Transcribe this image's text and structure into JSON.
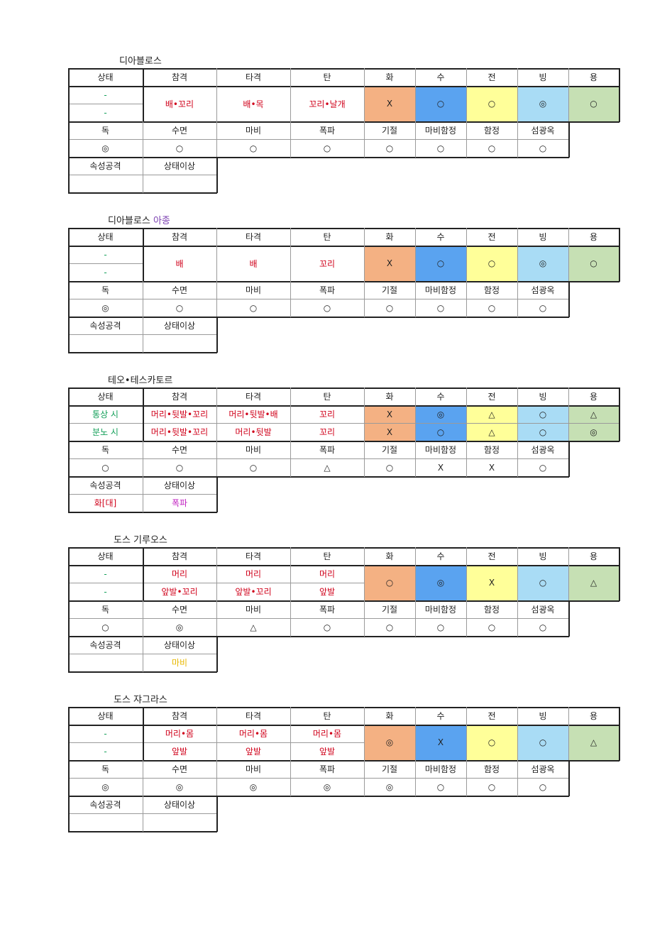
{
  "headers": {
    "weakness": [
      "상태",
      "참격",
      "타격",
      "탄",
      "화",
      "수",
      "전",
      "빙",
      "용"
    ],
    "status": [
      "독",
      "수면",
      "마비",
      "폭파",
      "기절",
      "마비함정",
      "함정",
      "섬광옥"
    ],
    "attack": [
      "속성공격",
      "상태이상"
    ]
  },
  "colors": {
    "fire": "#f4b183",
    "water": "#5aa3f0",
    "thunder": "#ffff99",
    "ice": "#a9dcf5",
    "dragon": "#c6e0b4",
    "state_text": "#14a05a",
    "part_text": "#d0021b"
  },
  "monsters": [
    {
      "name": "디아블로스",
      "name_sub": "",
      "states": [
        "-",
        "-"
      ],
      "merge_parts": true,
      "parts": {
        "cut": [
          "배•꼬리"
        ],
        "blunt": [
          "배•목"
        ],
        "shot": [
          "꼬리•날개"
        ]
      },
      "merge_elements": true,
      "elements": [
        [
          "X",
          "○",
          "○",
          "◎",
          "○"
        ]
      ],
      "status": [
        "◎",
        "○",
        "○",
        "○",
        "○",
        "○",
        "○",
        "○"
      ],
      "attack": {
        "element": "",
        "element_color": "red",
        "status": "",
        "status_color": "red"
      }
    },
    {
      "name": "디아블로스",
      "name_sub": "아종",
      "states": [
        "-",
        "-"
      ],
      "merge_parts": true,
      "parts": {
        "cut": [
          "배"
        ],
        "blunt": [
          "배"
        ],
        "shot": [
          "꼬리"
        ]
      },
      "merge_elements": true,
      "elements": [
        [
          "X",
          "○",
          "○",
          "◎",
          "○"
        ]
      ],
      "status": [
        "◎",
        "○",
        "○",
        "○",
        "○",
        "○",
        "○",
        "○"
      ],
      "attack": {
        "element": "",
        "element_color": "red",
        "status": "",
        "status_color": "red"
      }
    },
    {
      "name": "테오•테스카토르",
      "name_sub": "",
      "states": [
        "통상 시",
        "분노 시"
      ],
      "merge_parts": false,
      "parts": {
        "cut": [
          "머리•뒷발•꼬리",
          "머리•뒷발•꼬리"
        ],
        "blunt": [
          "머리•뒷발•배",
          "머리•뒷발"
        ],
        "shot": [
          "꼬리",
          "꼬리"
        ]
      },
      "merge_elements": false,
      "elements": [
        [
          "X",
          "◎",
          "△",
          "○",
          "△"
        ],
        [
          "X",
          "○",
          "△",
          "○",
          "◎"
        ]
      ],
      "status": [
        "○",
        "○",
        "○",
        "△",
        "○",
        "X",
        "X",
        "○"
      ],
      "attack": {
        "element": "화[대]",
        "element_color": "red",
        "status": "폭파",
        "status_color": "magenta"
      }
    },
    {
      "name": "도스 기루오스",
      "name_sub": "",
      "states": [
        "-",
        "-"
      ],
      "merge_parts": false,
      "parts": {
        "cut": [
          "머리",
          "앞발•꼬리"
        ],
        "blunt": [
          "머리",
          "앞발•꼬리"
        ],
        "shot": [
          "머리",
          "앞발"
        ]
      },
      "merge_elements": true,
      "elements": [
        [
          "○",
          "◎",
          "X",
          "○",
          "△"
        ]
      ],
      "status": [
        "○",
        "◎",
        "△",
        "○",
        "○",
        "○",
        "○",
        "○"
      ],
      "attack": {
        "element": "",
        "element_color": "red",
        "status": "마비",
        "status_color": "yellow"
      }
    },
    {
      "name": "도스 쟈그라스",
      "name_sub": "",
      "states": [
        "-",
        "-"
      ],
      "merge_parts": false,
      "parts": {
        "cut": [
          "머리•몸",
          "앞발"
        ],
        "blunt": [
          "머리•몸",
          "앞발"
        ],
        "shot": [
          "머리•몸",
          "앞발"
        ]
      },
      "merge_elements": true,
      "elements": [
        [
          "◎",
          "X",
          "○",
          "○",
          "△"
        ]
      ],
      "status": [
        "◎",
        "◎",
        "◎",
        "◎",
        "◎",
        "○",
        "○",
        "○"
      ],
      "attack": {
        "element": "",
        "element_color": "red",
        "status": "",
        "status_color": "red"
      }
    }
  ]
}
